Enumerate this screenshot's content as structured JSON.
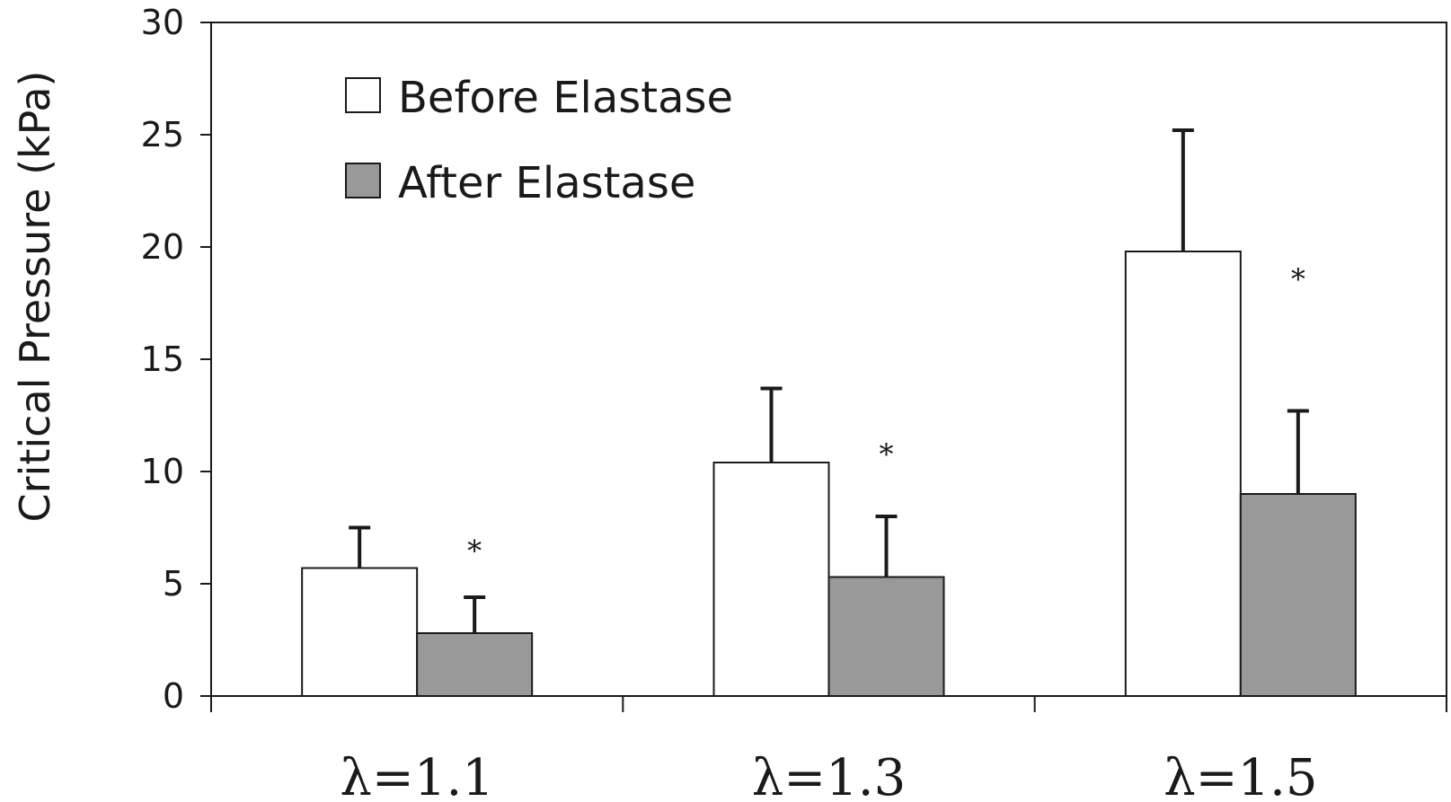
{
  "chart_data": {
    "type": "bar",
    "ylabel": "Critical Pressure (kPa)",
    "ylim": [
      0,
      30
    ],
    "yticks": [
      "0",
      "5",
      "10",
      "15",
      "20",
      "25",
      "30"
    ],
    "grid": false,
    "legend_position": "top-left",
    "categories": [
      "λ=1.1",
      "λ=1.3",
      "λ=1.5"
    ],
    "series": [
      {
        "name": "Before Elastase",
        "color": "#ffffff",
        "values": [
          5.7,
          10.4,
          19.8
        ],
        "error": [
          1.8,
          3.3,
          5.4
        ]
      },
      {
        "name": "After Elastase",
        "color": "#999999",
        "values": [
          2.8,
          5.3,
          9.0
        ],
        "error": [
          1.6,
          2.7,
          3.7
        ]
      }
    ],
    "annotations": [
      {
        "text": "*",
        "category_index": 0,
        "series_index": 1,
        "y": 6.5
      },
      {
        "text": "*",
        "category_index": 1,
        "series_index": 1,
        "y": 10.8
      },
      {
        "text": "*",
        "category_index": 2,
        "series_index": 1,
        "y": 18.6
      }
    ]
  }
}
